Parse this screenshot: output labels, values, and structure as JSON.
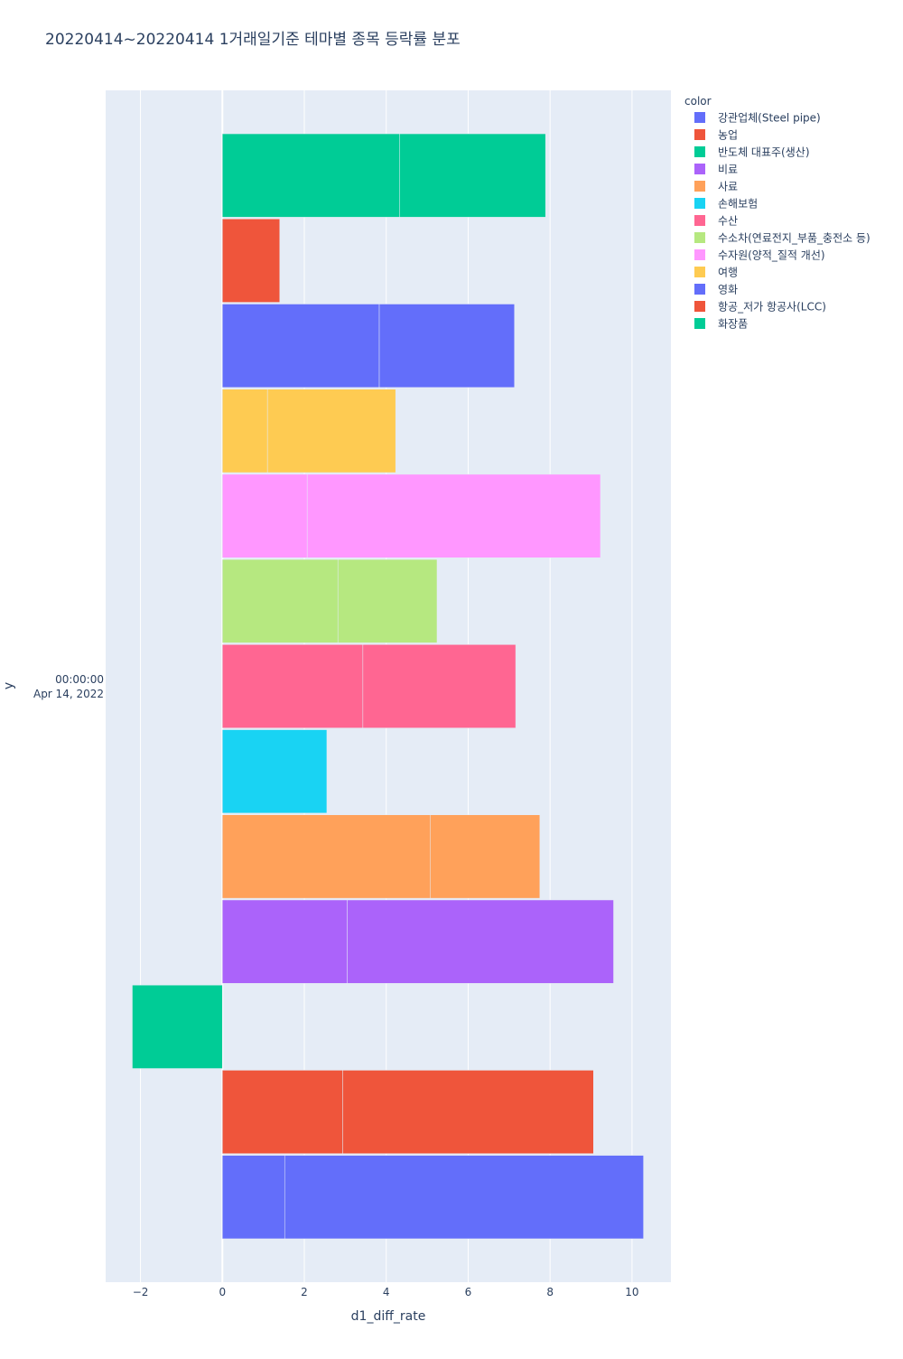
{
  "chart_data": {
    "type": "bar",
    "orientation": "horizontal",
    "barmode": "stack",
    "title": "20220414~20220414 1거래일기준 테마별 종목 등락률 분포",
    "xlabel": "d1_diff_rate",
    "ylabel": "y",
    "y_category": [
      "00:00:00",
      "Apr 14, 2022"
    ],
    "xlim": [
      -2.85,
      10.95
    ],
    "xticks": [
      -2,
      0,
      2,
      4,
      6,
      8,
      10
    ],
    "xtick_labels": [
      "−2",
      "0",
      "2",
      "4",
      "6",
      "8",
      "10"
    ],
    "grid": true,
    "legend": {
      "title": "color",
      "placement": "top-right"
    },
    "series": [
      {
        "name": "강관업체(Steel pipe)",
        "color": "#636efa",
        "segments": [
          1.52,
          8.76
        ]
      },
      {
        "name": "농업",
        "color": "#EF553B",
        "segments": [
          2.94,
          6.12
        ]
      },
      {
        "name": "반도체 대표주(생산)",
        "color": "#00cc96",
        "segments": [
          -2.2
        ]
      },
      {
        "name": "비료",
        "color": "#ab63fa",
        "segments": [
          3.05,
          6.5
        ]
      },
      {
        "name": "사료",
        "color": "#FFA15A",
        "segments": [
          5.07,
          2.68
        ]
      },
      {
        "name": "손해보험",
        "color": "#19d3f3",
        "segments": [
          2.55
        ]
      },
      {
        "name": "수산",
        "color": "#FF6692",
        "segments": [
          3.43,
          3.73
        ]
      },
      {
        "name": "수소차(연료전지_부품_충전소 등)",
        "color": "#B6E880",
        "segments": [
          2.82,
          2.42
        ]
      },
      {
        "name": "수자원(양적_질적 개선)",
        "color": "#FF97FF",
        "segments": [
          2.07,
          7.16
        ]
      },
      {
        "name": "여행",
        "color": "#FECB52",
        "segments": [
          1.1,
          3.13
        ]
      },
      {
        "name": "영화",
        "color": "#636efa",
        "segments": [
          3.83,
          3.3
        ]
      },
      {
        "name": "항공_저가 항공사(LCC)",
        "color": "#EF553B",
        "segments": [
          1.4
        ]
      },
      {
        "name": "화장품",
        "color": "#00cc96",
        "segments": [
          4.33,
          3.56
        ]
      }
    ]
  },
  "colors": {
    "plot_background": "#E5ECF6",
    "grid": "#ffffff",
    "text": "#2a3f5f"
  }
}
